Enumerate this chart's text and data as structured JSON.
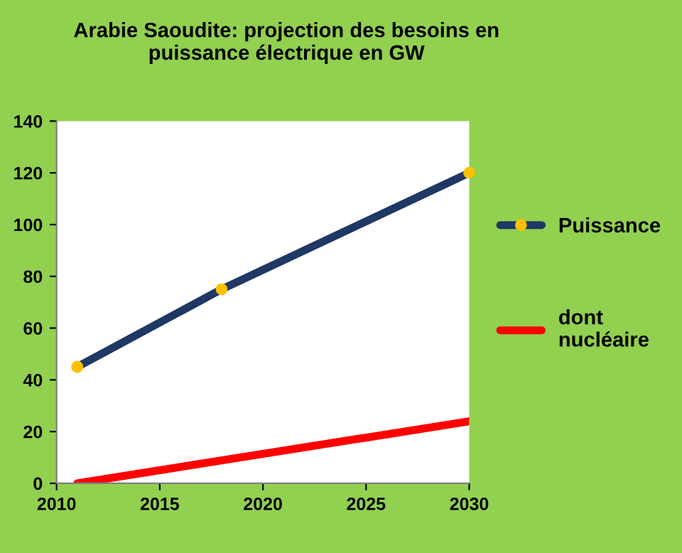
{
  "chart_data": {
    "type": "line",
    "title": "Arabie Saoudite: projection des besoins en\npuissance électrique en GW",
    "series": [
      {
        "name": "Puissance",
        "color": "#1f3864",
        "marker": "circle",
        "colors": [
          "#ffc000",
          "#ffc000",
          "#ffc000"
        ],
        "x": [
          2011,
          2018,
          2030
        ],
        "values": [
          45,
          75,
          120
        ]
      },
      {
        "name": "dont\nnucléaire",
        "color": "#ff0000",
        "marker": "none",
        "x": [
          2011,
          2030
        ],
        "values": [
          0,
          24
        ]
      }
    ],
    "xlim": [
      2010,
      2030
    ],
    "xticks": [
      2010,
      2015,
      2020,
      2025,
      2030
    ],
    "ylim": [
      0,
      140
    ],
    "yticks": [
      0,
      20,
      40,
      60,
      80,
      100,
      120,
      140
    ],
    "grid": false,
    "legend": "right",
    "line_style": "solid"
  }
}
